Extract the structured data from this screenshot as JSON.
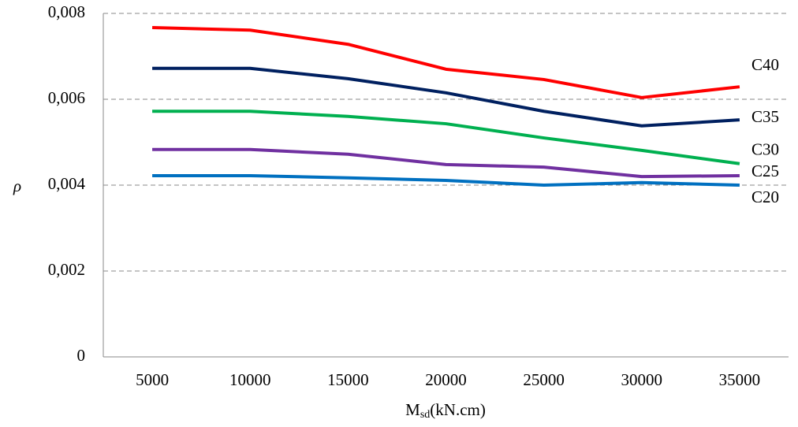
{
  "chart_data": {
    "type": "line",
    "y_label": "ρ",
    "x_label": {
      "main": "M",
      "sub": "sd",
      "unit": "(kN.cm)"
    },
    "categories": [
      5000,
      10000,
      15000,
      20000,
      25000,
      30000,
      35000
    ],
    "series": [
      {
        "name": "C40",
        "color": "#ff0000",
        "values": [
          0.00767,
          0.00761,
          0.00728,
          0.0067,
          0.00646,
          0.00604,
          0.00629
        ]
      },
      {
        "name": "C35",
        "color": "#002060",
        "values": [
          0.00672,
          0.00672,
          0.00648,
          0.00615,
          0.00572,
          0.00538,
          0.00552
        ]
      },
      {
        "name": "C30",
        "color": "#00b050",
        "values": [
          0.00572,
          0.00572,
          0.0056,
          0.00543,
          0.0051,
          0.00481,
          0.0045
        ]
      },
      {
        "name": "C25",
        "color": "#7030a0",
        "values": [
          0.00483,
          0.00483,
          0.00472,
          0.00448,
          0.00442,
          0.0042,
          0.00422
        ]
      },
      {
        "name": "C20",
        "color": "#0070c0",
        "values": [
          0.00422,
          0.00422,
          0.00417,
          0.00411,
          0.004,
          0.00406,
          0.004
        ]
      }
    ],
    "ylim": [
      0,
      0.008
    ],
    "yticks": [
      0,
      {
        "value": 0.002,
        "label": "0,002"
      },
      {
        "value": 0.004,
        "label": "0,004"
      },
      {
        "value": 0.006,
        "label": "0,006"
      },
      {
        "value": 0.008,
        "label": "0,008"
      }
    ],
    "grid": true
  }
}
